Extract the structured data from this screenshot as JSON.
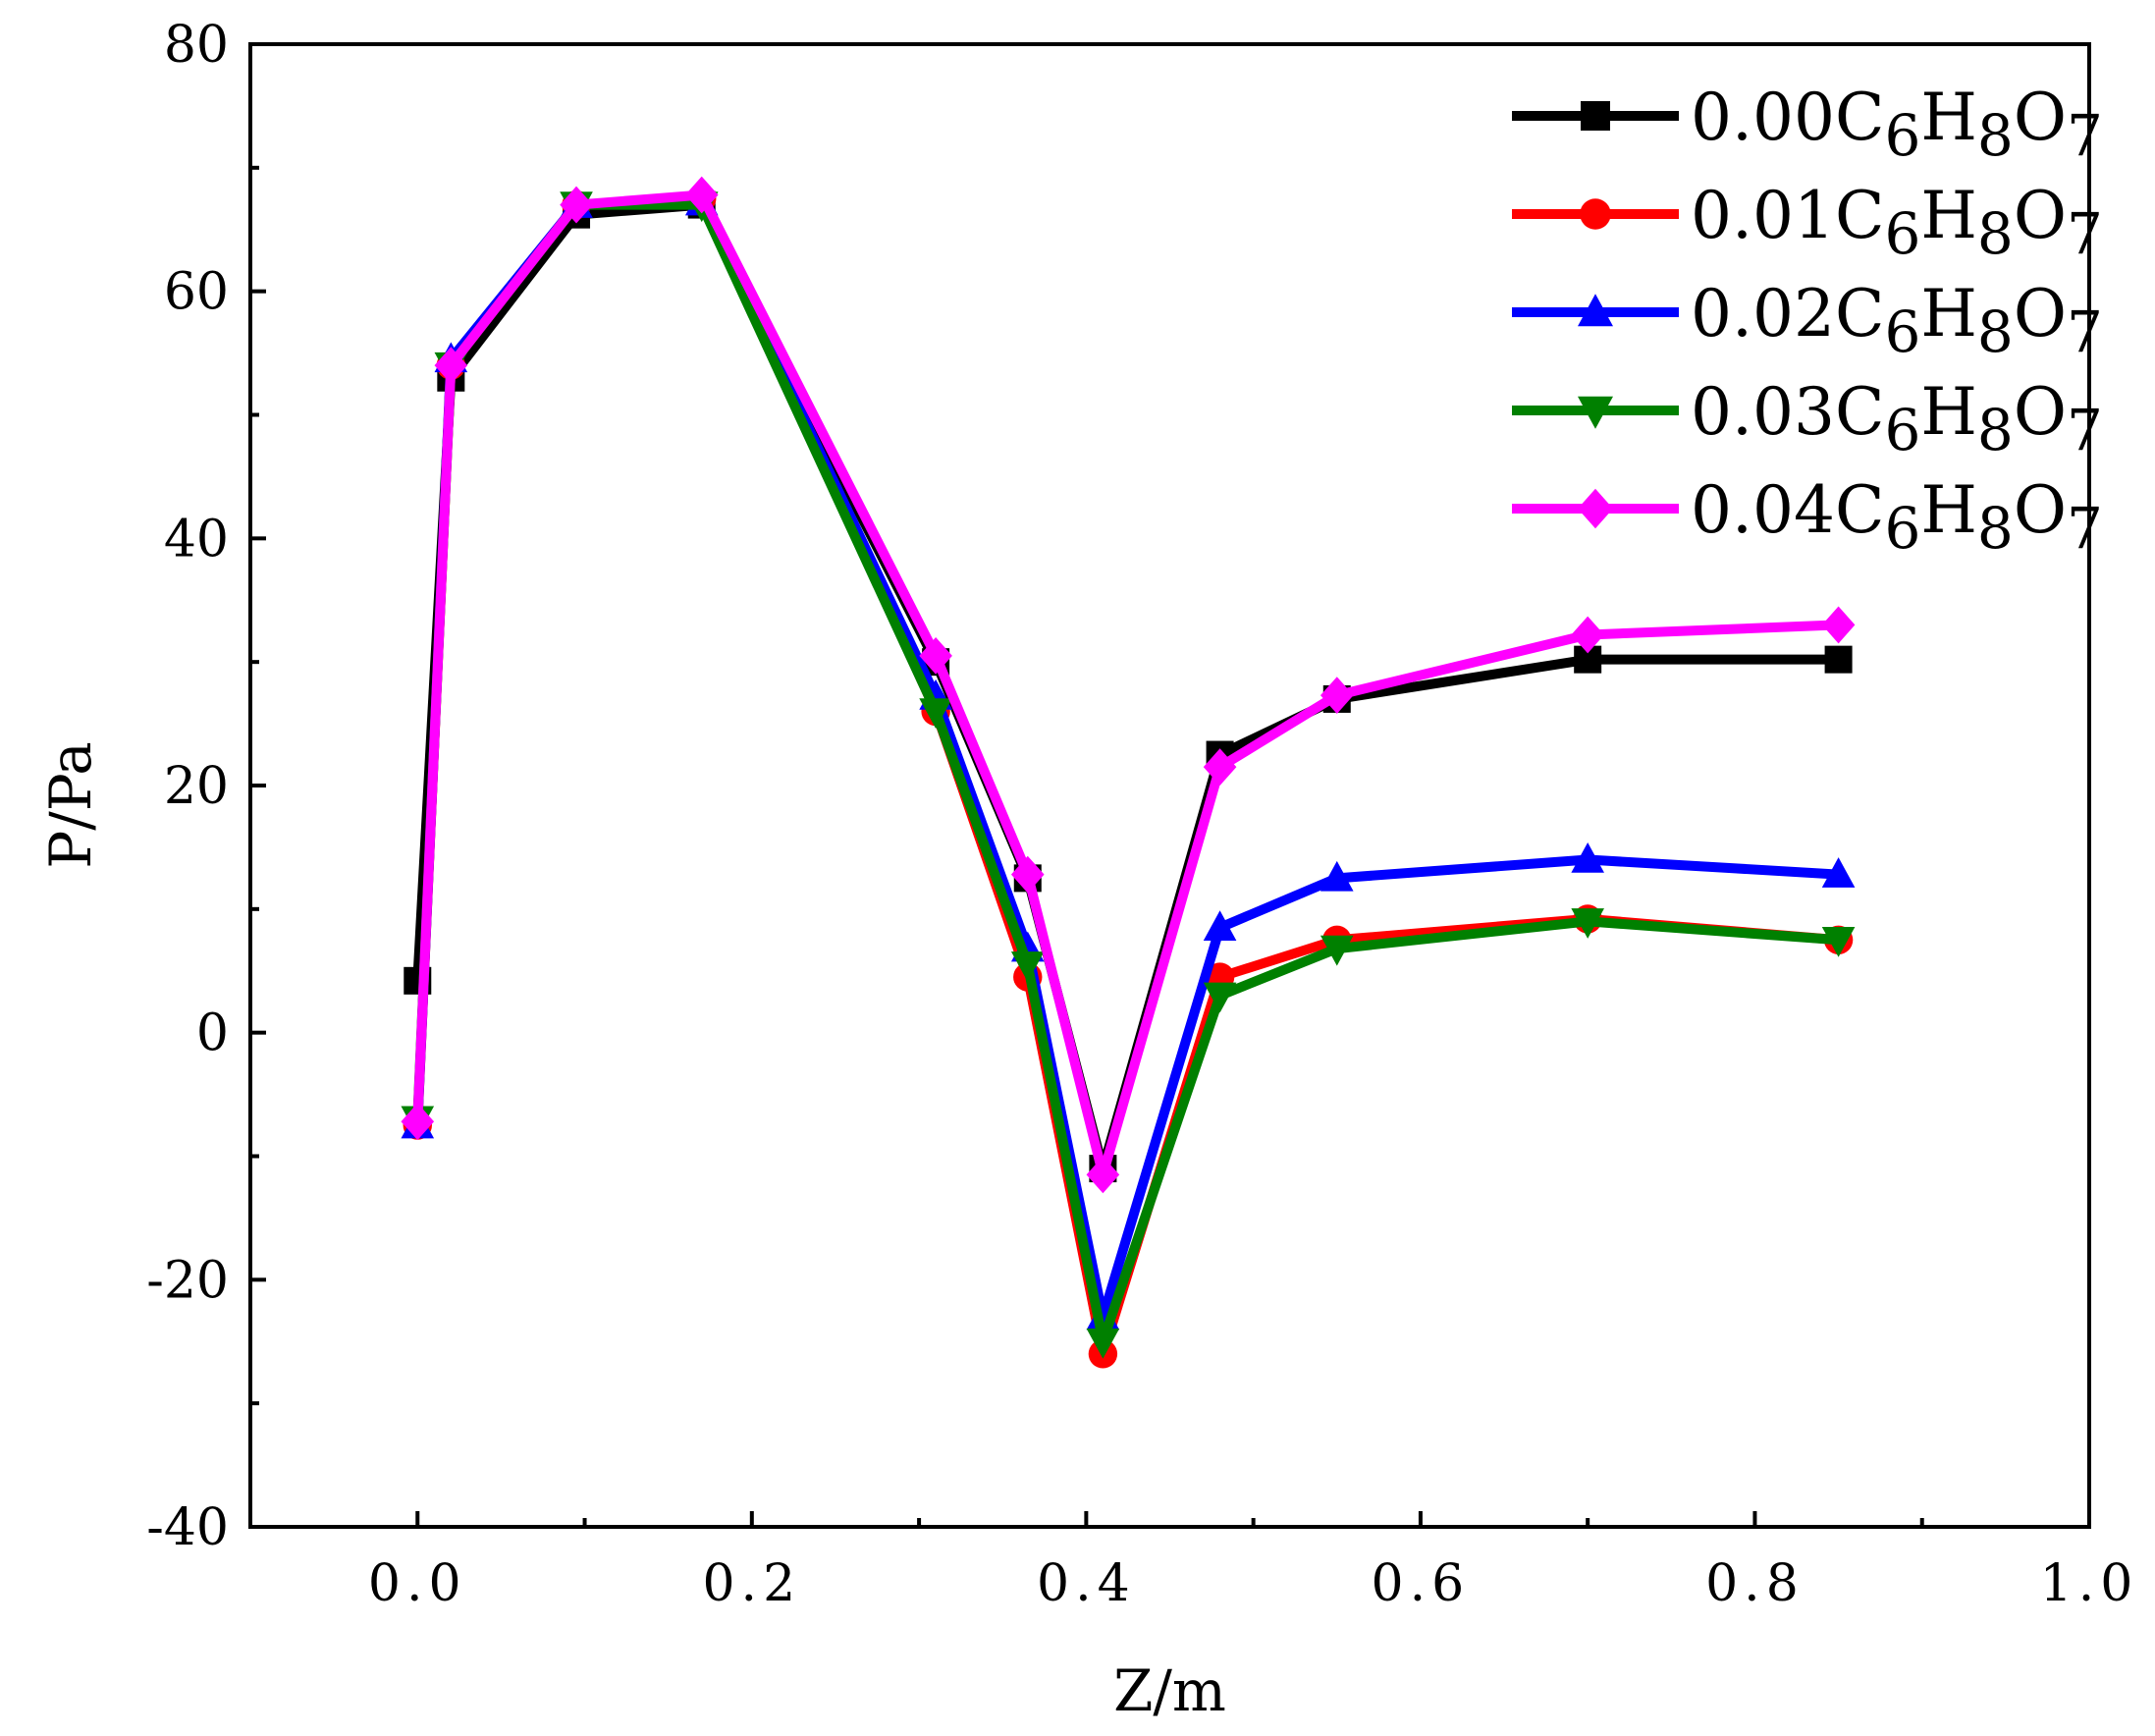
{
  "chart_data": {
    "type": "line",
    "title": "",
    "xlabel": "Z/m",
    "ylabel": "P/Pa",
    "xlim": [
      -0.1,
      1.0
    ],
    "ylim": [
      -40,
      80
    ],
    "x_ticks": [
      0.0,
      0.2,
      0.4,
      0.6,
      0.8,
      1.0
    ],
    "x_tick_labels": [
      "0.0",
      "0.2",
      "0.4",
      "0.6",
      "0.8",
      "1.0"
    ],
    "y_ticks": [
      -40,
      -20,
      0,
      20,
      40,
      60,
      80
    ],
    "y_tick_labels": [
      "-40",
      "-20",
      "0",
      "20",
      "40",
      "60",
      "80"
    ],
    "grid": false,
    "legend_position": "top-right",
    "x": [
      0.0,
      0.02,
      0.095,
      0.17,
      0.31,
      0.365,
      0.41,
      0.48,
      0.55,
      0.7,
      0.85
    ],
    "series": [
      {
        "name": "0.00C6H8O7",
        "legend": {
          "prefix": "0.00C",
          "s1": "6",
          "m1": "H",
          "s2": "8",
          "m2": "O",
          "s3": "7"
        },
        "color": "#000000",
        "marker": "square",
        "values": [
          4.2,
          53,
          66.2,
          67,
          30,
          12.5,
          -11,
          22.5,
          27,
          30.2,
          30.2
        ]
      },
      {
        "name": "0.01C6H8O7",
        "legend": {
          "prefix": "0.01C",
          "s1": "6",
          "m1": "H",
          "s2": "8",
          "m2": "O",
          "s3": "7"
        },
        "color": "#ff0000",
        "marker": "circle",
        "values": [
          -7.5,
          54,
          67,
          67.5,
          26,
          4.5,
          -26,
          4.5,
          7.5,
          9.2,
          7.5
        ]
      },
      {
        "name": "0.02C6H8O7",
        "legend": {
          "prefix": "0.02C",
          "s1": "6",
          "m1": "H",
          "s2": "8",
          "m2": "O",
          "s3": "7"
        },
        "color": "#0000ff",
        "marker": "triangle-up",
        "values": [
          -7.5,
          54.5,
          67,
          67.2,
          27.2,
          6.8,
          -23,
          8.5,
          12.5,
          14,
          12.8
        ]
      },
      {
        "name": "0.03C6H8O7",
        "legend": {
          "prefix": "0.03C",
          "s1": "6",
          "m1": "H",
          "s2": "8",
          "m2": "O",
          "s3": "7"
        },
        "color": "#008000",
        "marker": "triangle-down",
        "values": [
          -7,
          54,
          67,
          67,
          26,
          5.5,
          -25,
          3,
          6.8,
          9,
          7.5
        ]
      },
      {
        "name": "0.04C6H8O7",
        "legend": {
          "prefix": "0.04C",
          "s1": "6",
          "m1": "H",
          "s2": "8",
          "m2": "O",
          "s3": "7"
        },
        "color": "#ff00ff",
        "marker": "diamond",
        "values": [
          -7.2,
          54,
          67,
          67.8,
          30.5,
          12.8,
          -11.5,
          21.5,
          27.3,
          32.2,
          33
        ]
      }
    ]
  }
}
